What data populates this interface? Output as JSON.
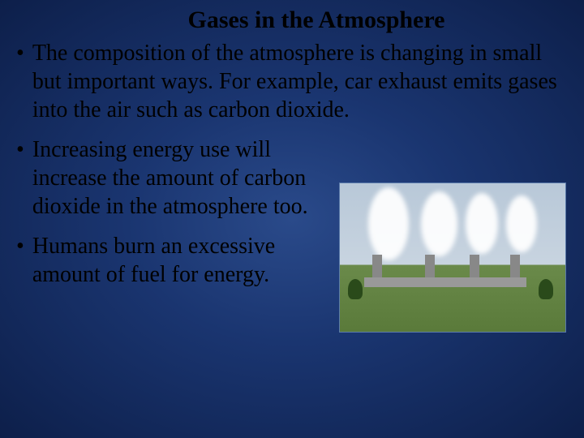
{
  "slide": {
    "title": "Gases in the Atmosphere",
    "bullets": [
      {
        "text": "The composition of the atmosphere is changing in small but important ways. For example, car exhaust emits gases into the air such as carbon dioxide.",
        "narrow": false
      },
      {
        "text": "Increasing energy use will increase the amount of carbon dioxide in the atmosphere too.",
        "narrow": true
      },
      {
        "text": "Humans burn an excessive amount of fuel for energy.",
        "narrow": true
      }
    ],
    "bullet_marker": "•",
    "image_alt": "factory-smokestacks"
  },
  "colors": {
    "background_center": "#2a4a8a",
    "background_edge": "#0d1f4a",
    "text": "#000000",
    "image_border": "#5a7aaa"
  },
  "typography": {
    "title_fontsize": 30,
    "body_fontsize": 28,
    "font_family": "Times New Roman"
  }
}
